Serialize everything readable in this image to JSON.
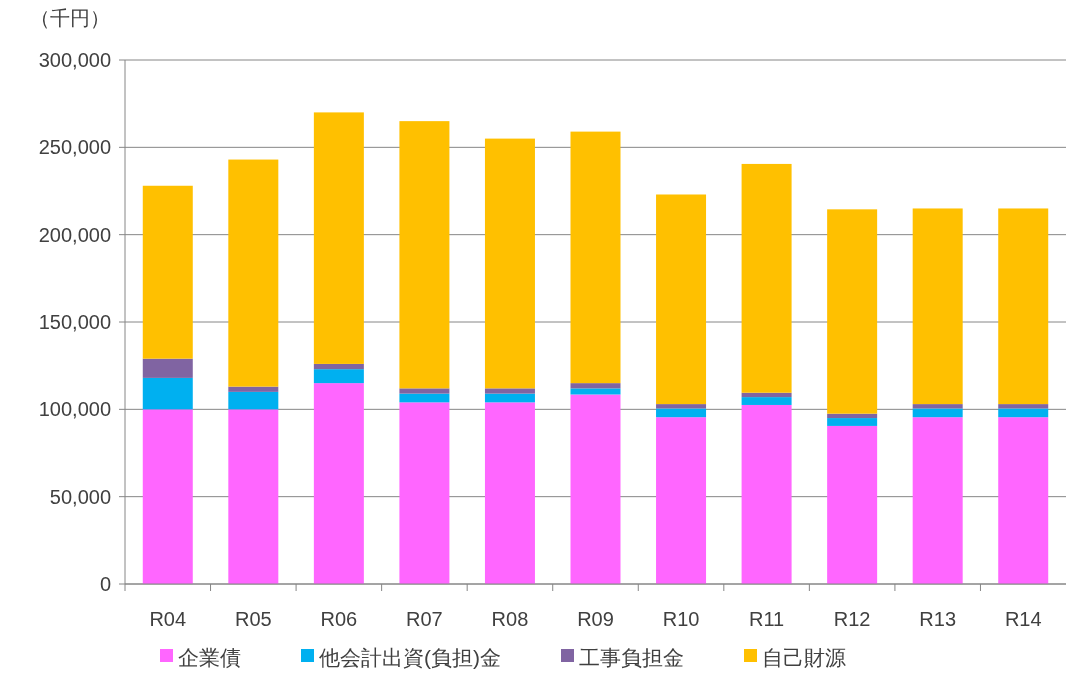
{
  "chart_data": {
    "type": "bar",
    "stacked": true,
    "ylabel": "（千円）",
    "categories": [
      "R04",
      "R05",
      "R06",
      "R07",
      "R08",
      "R09",
      "R10",
      "R11",
      "R12",
      "R13",
      "R14"
    ],
    "series": [
      {
        "name": "企業債",
        "color": "#ff66ff",
        "values": [
          100000,
          100000,
          115000,
          104000,
          104000,
          108500,
          95500,
          102500,
          90500,
          95500,
          95500
        ]
      },
      {
        "name": "他会計出資(負担)金",
        "color": "#00b0f0",
        "values": [
          18000,
          10000,
          8000,
          5000,
          5000,
          3500,
          5000,
          4500,
          4500,
          5000,
          5000
        ]
      },
      {
        "name": "工事負担金",
        "color": "#8064a2",
        "values": [
          11000,
          3000,
          3000,
          3000,
          3000,
          3000,
          2500,
          2500,
          2500,
          2500,
          2500
        ]
      },
      {
        "name": "自己財源",
        "color": "#ffc000",
        "values": [
          99000,
          130000,
          144000,
          153000,
          143000,
          144000,
          120000,
          131000,
          117000,
          112000,
          112000
        ]
      }
    ],
    "ylim": [
      0,
      300000
    ],
    "yticks": [
      0,
      {
        "value": 50000,
        "label": "50,000"
      },
      {
        "value": 100000,
        "label": "100,000"
      },
      {
        "value": 150000,
        "label": "150,000"
      },
      {
        "value": 200000,
        "label": "200,000"
      },
      {
        "value": 250000,
        "label": "250,000"
      },
      {
        "value": 300000,
        "label": "300,000"
      }
    ],
    "grid": "y",
    "legend": "bottom"
  }
}
